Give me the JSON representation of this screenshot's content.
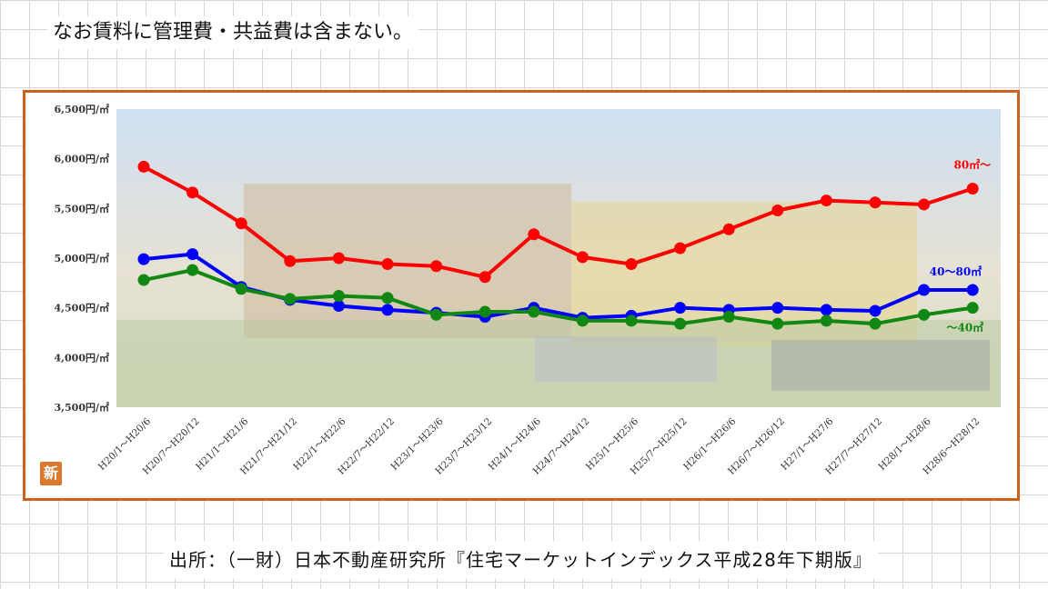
{
  "note": "なお賃料に管理費・共益費は含まない。",
  "source": "出所：（一財）日本不動産研究所『住宅マーケットインデックス平成28年下期版』",
  "badge": "新",
  "chart_data": {
    "type": "line",
    "title": "",
    "xlabel": "",
    "ylabel": "",
    "ylim": [
      3500,
      6500
    ],
    "yticks": [
      {
        "value": 6500,
        "label": "6,500円/㎡"
      },
      {
        "value": 6000,
        "label": "6,000円/㎡"
      },
      {
        "value": 5500,
        "label": "5,500円/㎡"
      },
      {
        "value": 5000,
        "label": "5,000円/㎡"
      },
      {
        "value": 4500,
        "label": "4,500円/㎡"
      },
      {
        "value": 4000,
        "label": "4,000円/㎡"
      },
      {
        "value": 3500,
        "label": "3,500円/㎡"
      }
    ],
    "categories": [
      "H20/1～H20/6",
      "H20/7～H20/12",
      "H21/1～H21/6",
      "H21/7～H21/12",
      "H22/1～H22/6",
      "H22/7～H22/12",
      "H23/1～H23/6",
      "H23/7～H23/12",
      "H24/1～H24/6",
      "H24/7～H24/12",
      "H25/1～H25/6",
      "H25/7～H25/12",
      "H26/1～H26/6",
      "H26/7～H26/12",
      "H27/1～H27/6",
      "H27/7～H27/12",
      "H28/1～H28/6",
      "H28/6～H28/12"
    ],
    "grid": false,
    "legend": "inline-right",
    "series": [
      {
        "name": "80㎡～",
        "color": "#ff0000",
        "values": [
          5920,
          5660,
          5350,
          4970,
          5000,
          4940,
          4920,
          4810,
          5240,
          5010,
          4940,
          5100,
          5290,
          5480,
          5580,
          5560,
          5540,
          5700
        ]
      },
      {
        "name": "40～80㎡",
        "color": "#0000ff",
        "values": [
          4990,
          5040,
          4710,
          4580,
          4520,
          4480,
          4450,
          4410,
          4500,
          4400,
          4420,
          4500,
          4480,
          4500,
          4480,
          4470,
          4680,
          4680
        ]
      },
      {
        "name": "～40㎡",
        "color": "#118811",
        "values": [
          4780,
          4880,
          4690,
          4590,
          4620,
          4600,
          4430,
          4460,
          4460,
          4370,
          4370,
          4340,
          4410,
          4340,
          4370,
          4340,
          4430,
          4500
        ]
      }
    ]
  }
}
